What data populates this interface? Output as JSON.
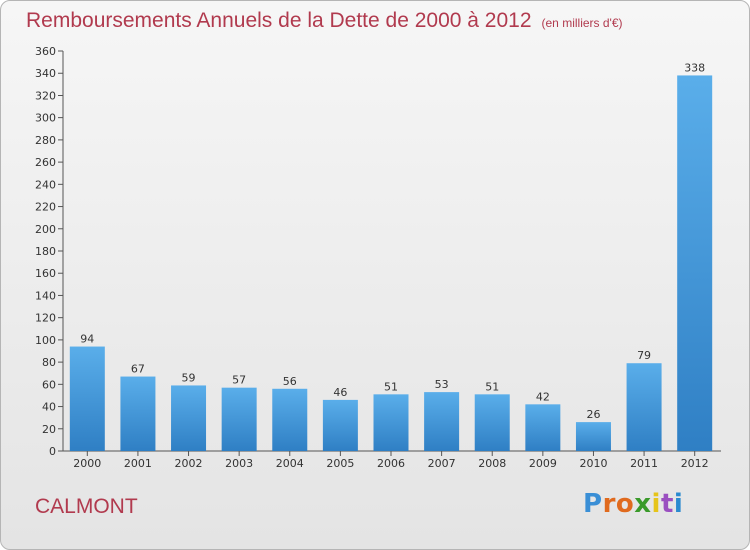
{
  "header": {
    "title": "Remboursements Annuels de la Dette de 2000 à 2012",
    "subtitle": "(en milliers d'€)"
  },
  "commune": "CALMONT",
  "logo": {
    "text": "Proxiti",
    "letter_colors": [
      "#3a8fd6",
      "#e06a1e",
      "#e06a1e",
      "#3a9a2a",
      "#e6c41a",
      "#9a4fc0",
      "#2a8ad0"
    ]
  },
  "colors": {
    "bar_top": "#5aaeea",
    "bar_bottom": "#2f7fc4",
    "accent": "#b13a4e"
  },
  "chart_data": {
    "type": "bar",
    "categories": [
      "2000",
      "2001",
      "2002",
      "2003",
      "2004",
      "2005",
      "2006",
      "2007",
      "2008",
      "2009",
      "2010",
      "2011",
      "2012"
    ],
    "values": [
      94,
      67,
      59,
      57,
      56,
      46,
      51,
      53,
      51,
      42,
      26,
      79,
      338
    ],
    "data_labels": [
      "94",
      "67",
      "59",
      "57",
      "56",
      "46",
      "51",
      "53",
      "51",
      "42",
      "26",
      "79",
      "338"
    ],
    "ylim": [
      0,
      360
    ],
    "yticks": [
      0,
      20,
      40,
      60,
      80,
      100,
      120,
      140,
      160,
      180,
      200,
      220,
      240,
      260,
      280,
      300,
      320,
      340,
      360
    ],
    "xlabel": "",
    "ylabel": "",
    "grid": false,
    "legend": "none"
  }
}
